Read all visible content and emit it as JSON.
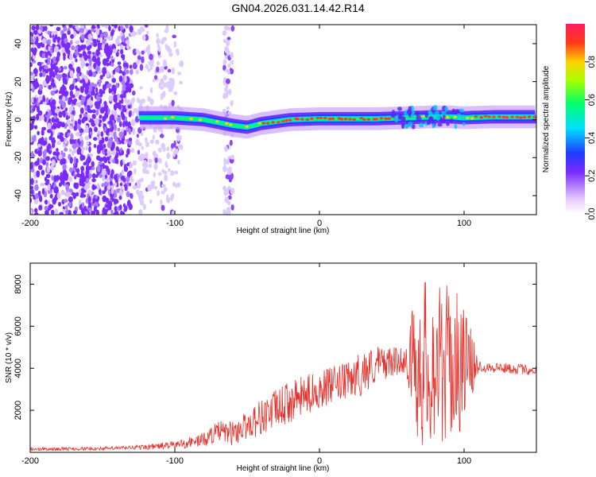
{
  "title": "GN04.2026.031.14.42.R14",
  "chart_data": [
    {
      "type": "heatmap",
      "title": "GN04.2026.031.14.42.R14",
      "xlabel": "Height of straight line (km)",
      "ylabel": "Frequency (Hz)",
      "xlim": [
        -200,
        150
      ],
      "ylim": [
        -50,
        50
      ],
      "xticks": [
        -200,
        -100,
        0,
        100
      ],
      "yticks": [
        -40,
        -20,
        0,
        20,
        40
      ],
      "colorbar": {
        "label": "Normalized spectral amplitude",
        "range": [
          0,
          1
        ],
        "ticks": [
          "0.0",
          "0.2",
          "0.4",
          "0.6",
          "0.8"
        ]
      },
      "ridge": {
        "description_points_x": [
          -120,
          -100,
          -80,
          -60,
          -50,
          -40,
          -30,
          -20,
          0,
          20,
          40,
          60,
          80,
          90,
          100,
          120,
          150
        ],
        "frequency": [
          1,
          1,
          0,
          -3,
          -4,
          -2,
          -1,
          0,
          0.5,
          0.5,
          0.5,
          1,
          1.5,
          1.5,
          1,
          1.5,
          1.5
        ]
      },
      "noise_region_x": [
        -200,
        -60
      ]
    },
    {
      "type": "line",
      "xlabel": "Height of straight line (km)",
      "ylabel": "SNR (10 * v/v)",
      "xlim": [
        -200,
        150
      ],
      "ylim": [
        0,
        9000
      ],
      "xticks": [
        -200,
        -100,
        0,
        100
      ],
      "yticks": [
        2000,
        4000,
        6000,
        8000
      ],
      "color": "#e8302a",
      "envelope": {
        "x": [
          -200,
          -150,
          -120,
          -100,
          -80,
          -70,
          -60,
          -50,
          -40,
          -20,
          0,
          20,
          30,
          40,
          50,
          60,
          65,
          70,
          80,
          90,
          100,
          110,
          130,
          150
        ],
        "mean": [
          150,
          180,
          250,
          350,
          600,
          1000,
          900,
          1300,
          1700,
          2400,
          3000,
          3400,
          3800,
          4200,
          4300,
          4400,
          4300,
          4300,
          4200,
          4200,
          4200,
          4100,
          4000,
          3900
        ],
        "spread": [
          80,
          80,
          120,
          200,
          350,
          500,
          600,
          700,
          900,
          1000,
          900,
          900,
          1100,
          900,
          700,
          600,
          3000,
          4200,
          3800,
          3800,
          3000,
          300,
          250,
          250
        ]
      }
    }
  ]
}
